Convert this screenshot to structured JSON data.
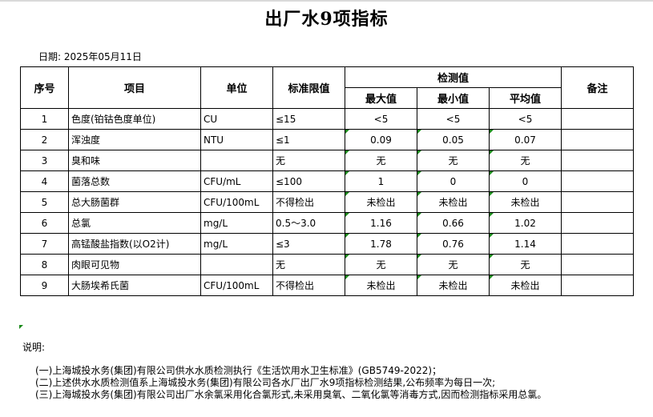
{
  "title": "出厂水9项指标",
  "date": "日期: 2025年05月11日",
  "headers": {
    "no": "序号",
    "item": "项目",
    "unit": "单位",
    "limit": "标准限值",
    "measured": "检测值",
    "max": "最大值",
    "min": "最小值",
    "avg": "平均值",
    "remark": "备注"
  },
  "rows": [
    {
      "no": "1",
      "item": "色度(铂钴色度单位)",
      "unit": "CU",
      "limit": "≤15",
      "max": "<5",
      "min": "<5",
      "avg": "<5",
      "remark": ""
    },
    {
      "no": "2",
      "item": "浑浊度",
      "unit": "NTU",
      "limit": "≤1",
      "max": "0.09",
      "min": "0.05",
      "avg": "0.07",
      "remark": ""
    },
    {
      "no": "3",
      "item": "臭和味",
      "unit": "",
      "limit": "无",
      "max": "无",
      "min": "无",
      "avg": "无",
      "remark": ""
    },
    {
      "no": "4",
      "item": "菌落总数",
      "unit": "CFU/mL",
      "limit": "≤100",
      "max": "1",
      "min": "0",
      "avg": "0",
      "remark": ""
    },
    {
      "no": "5",
      "item": "总大肠菌群",
      "unit": "CFU/100mL",
      "limit": "不得检出",
      "max": "未检出",
      "min": "未检出",
      "avg": "未检出",
      "remark": ""
    },
    {
      "no": "6",
      "item": "总氯",
      "unit": "mg/L",
      "limit": "0.5～3.0",
      "max": "1.16",
      "min": "0.66",
      "avg": "1.02",
      "remark": ""
    },
    {
      "no": "7",
      "item": "高锰酸盐指数(以O2计)",
      "unit": "mg/L",
      "limit": "≤3",
      "max": "1.78",
      "min": "0.76",
      "avg": "1.14",
      "remark": ""
    },
    {
      "no": "8",
      "item": "肉眼可见物",
      "unit": "",
      "limit": "无",
      "max": "无",
      "min": "无",
      "avg": "无",
      "remark": ""
    },
    {
      "no": "9",
      "item": "大肠埃希氏菌",
      "unit": "CFU/100mL",
      "limit": "不得检出",
      "max": "未检出",
      "min": "未检出",
      "avg": "未检出",
      "remark": ""
    }
  ],
  "notes_title": "说明:",
  "notes": [
    "(一)上海城投水务(集团)有限公司供水水质检测执行《生活饮用水卫生标准》(GB5749-2022)；",
    "(二)上述供水水质检测值系上海城投水务(集团)有限公司各水厂出厂水9项指标检测结果,公布频率为每日一次;",
    "(三)上海城投水务(集团)有限公司出厂水余氯采用化合氯形式,未采用臭氧、二氧化氯等消毒方式,因而检测指标采用总氯。"
  ]
}
